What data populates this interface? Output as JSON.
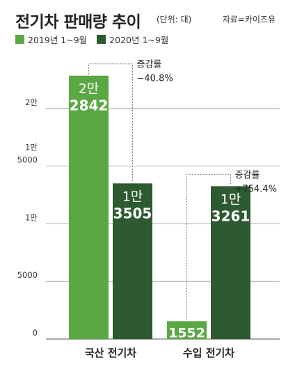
{
  "header": {
    "title": "전기차 판매량 추이",
    "unit": "(단위: 대)",
    "source": "자료=카이즈유"
  },
  "chart_data": {
    "type": "bar",
    "categories": [
      "국산 전기차",
      "수입 전기차"
    ],
    "series": [
      {
        "name": "2019년 1~9월",
        "color": "#5aa843",
        "values": [
          22842,
          1552
        ],
        "value_labels": [
          [
            "2만",
            "2842"
          ],
          [
            "1552"
          ]
        ]
      },
      {
        "name": "2020년 1~9월",
        "color": "#2d5a30",
        "values": [
          13505,
          13261
        ],
        "value_labels": [
          [
            "1만",
            "3505"
          ],
          [
            "1만",
            "3261"
          ]
        ]
      }
    ],
    "ylim": [
      0,
      25000
    ],
    "yticks": [
      {
        "value": 0,
        "label": [
          "0"
        ]
      },
      {
        "value": 5000,
        "label": [
          "5000"
        ]
      },
      {
        "value": 10000,
        "label": [
          "1만"
        ]
      },
      {
        "value": 15000,
        "label": [
          "1만",
          "5000"
        ]
      },
      {
        "value": 20000,
        "label": [
          "2만"
        ]
      }
    ],
    "annotations": [
      {
        "category": 0,
        "label": "증감률",
        "value": "−40.8%"
      },
      {
        "category": 1,
        "label": "증감률",
        "value": "+754.4%"
      }
    ],
    "grid": true,
    "legend": "top-left"
  }
}
